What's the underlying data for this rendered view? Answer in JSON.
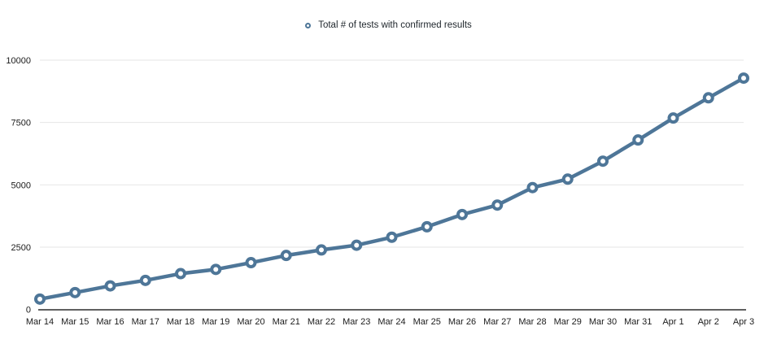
{
  "chart_data": {
    "type": "line",
    "title": "",
    "categories": [
      "Mar 14",
      "Mar 15",
      "Mar 16",
      "Mar 17",
      "Mar 18",
      "Mar 19",
      "Mar 20",
      "Mar 21",
      "Mar 22",
      "Mar 23",
      "Mar 24",
      "Mar 25",
      "Mar 26",
      "Mar 27",
      "Mar 28",
      "Mar 29",
      "Mar 30",
      "Mar 31",
      "Apr 1",
      "Apr 2",
      "Apr 3"
    ],
    "series": [
      {
        "name": "Total # of tests with confirmed results",
        "values": [
          420,
          680,
          950,
          1170,
          1440,
          1610,
          1880,
          2170,
          2390,
          2580,
          2900,
          3320,
          3810,
          4190,
          4890,
          5230,
          5950,
          6800,
          7680,
          8490,
          9280
        ],
        "marker": "open-circle"
      }
    ],
    "xlabel": "",
    "ylabel": "",
    "ylim": [
      0,
      10000
    ],
    "yticks": [
      0,
      2500,
      5000,
      7500,
      10000
    ],
    "grid": "horizontal-only",
    "legend_position": "top-center",
    "colors": {
      "series": "#4e7698",
      "gridline": "#e6e6e6",
      "axis_line": "#000000",
      "axis_label": "#1b1b1b",
      "legend_text": "#21282e",
      "background": "#ffffff"
    }
  }
}
